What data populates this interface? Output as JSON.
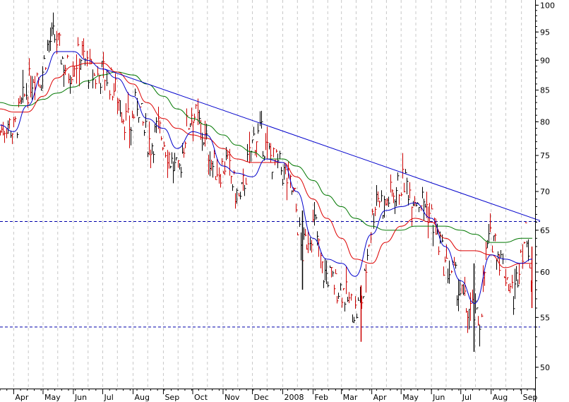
{
  "chart_data": {
    "type": "line",
    "subtype": "stock-ohlc-with-moving-averages",
    "title": "",
    "xlabel": "",
    "ylabel": "",
    "ylim": [
      48,
      101
    ],
    "y_scale": "log",
    "y_ticks": [
      "100",
      "95",
      "90",
      "85",
      "80",
      "75",
      "70",
      "65",
      "60",
      "55",
      "50"
    ],
    "x_ticks": [
      "Apr",
      "May",
      "Jun",
      "Jul",
      "Aug",
      "Sep",
      "Oct",
      "Nov",
      "Dec",
      "2008",
      "Feb",
      "Mar",
      "Apr",
      "May",
      "Jun",
      "Jul",
      "Aug",
      "Sep"
    ],
    "grid": "vertical dotted",
    "colors": {
      "price": "#cc0000",
      "ma_short": "#0000cc",
      "ma_mid": "#dd0000",
      "ma_long": "#007700",
      "trendline": "#0000cc",
      "support": "#0000aa",
      "grid": "#c8c8c8"
    },
    "horizontal_lines": [
      {
        "y": 66.1,
        "style": "dashed"
      },
      {
        "y": 54.0,
        "style": "dashed"
      }
    ],
    "trendline": {
      "x": [
        "2007-07-03",
        "2008-09-20"
      ],
      "y": [
        88.5,
        66.2
      ]
    },
    "ma_short": {
      "x": [
        "2007-03-18",
        "2007-04-01",
        "2007-04-15",
        "2007-05-01",
        "2007-05-15",
        "2007-06-01",
        "2007-06-15",
        "2007-07-01",
        "2007-07-15",
        "2007-08-01",
        "2007-08-15",
        "2007-09-01",
        "2007-09-15",
        "2007-10-01",
        "2007-10-15",
        "2007-11-01",
        "2007-11-15",
        "2007-12-01",
        "2007-12-15",
        "2008-01-01",
        "2008-01-15",
        "2008-02-01",
        "2008-02-15",
        "2008-03-01",
        "2008-03-15",
        "2008-04-01",
        "2008-04-15",
        "2008-05-01",
        "2008-05-15",
        "2008-06-01",
        "2008-06-15",
        "2008-07-01",
        "2008-07-15",
        "2008-08-01",
        "2008-08-15",
        "2008-09-01",
        "2008-09-12"
      ],
      "y": [
        79.5,
        78.5,
        82.5,
        87.5,
        91.5,
        91.5,
        90.0,
        88.5,
        87.0,
        84.0,
        80.5,
        79.0,
        76.0,
        78.5,
        78.0,
        73.5,
        72.5,
        72.0,
        74.5,
        74.0,
        70.0,
        64.0,
        61.5,
        61.0,
        59.5,
        64.5,
        67.5,
        68.0,
        68.5,
        66.5,
        63.0,
        59.0,
        56.5,
        62.0,
        61.5,
        61.0,
        61.5
      ]
    },
    "ma_mid": {
      "x": [
        "2007-03-18",
        "2007-04-01",
        "2007-04-15",
        "2007-05-01",
        "2007-05-15",
        "2007-06-01",
        "2007-06-15",
        "2007-07-01",
        "2007-07-15",
        "2007-08-01",
        "2007-08-15",
        "2007-09-01",
        "2007-09-15",
        "2007-10-01",
        "2007-10-15",
        "2007-11-01",
        "2007-11-15",
        "2007-12-01",
        "2007-12-15",
        "2008-01-01",
        "2008-01-15",
        "2008-02-01",
        "2008-02-15",
        "2008-03-01",
        "2008-03-15",
        "2008-04-01",
        "2008-04-15",
        "2008-05-01",
        "2008-05-15",
        "2008-06-01",
        "2008-06-15",
        "2008-07-01",
        "2008-07-15",
        "2008-08-01",
        "2008-08-15",
        "2008-09-01",
        "2008-09-12"
      ],
      "y": [
        82.0,
        81.5,
        81.5,
        84.0,
        87.0,
        89.0,
        89.5,
        89.5,
        88.0,
        86.0,
        83.0,
        80.5,
        79.0,
        78.0,
        77.5,
        76.0,
        74.5,
        74.0,
        74.0,
        74.0,
        72.0,
        69.0,
        66.5,
        64.0,
        61.5,
        61.0,
        63.5,
        65.5,
        66.5,
        66.0,
        64.0,
        62.5,
        62.5,
        62.0,
        60.5,
        61.0,
        61.0
      ]
    },
    "ma_long": {
      "x": [
        "2007-03-18",
        "2007-04-01",
        "2007-04-15",
        "2007-05-01",
        "2007-05-15",
        "2007-06-01",
        "2007-06-15",
        "2007-07-01",
        "2007-07-15",
        "2007-08-01",
        "2007-08-15",
        "2007-09-01",
        "2007-09-15",
        "2007-10-01",
        "2007-10-15",
        "2007-11-01",
        "2007-11-15",
        "2007-12-01",
        "2007-12-15",
        "2008-01-01",
        "2008-01-15",
        "2008-02-01",
        "2008-02-15",
        "2008-03-01",
        "2008-03-15",
        "2008-04-01",
        "2008-04-15",
        "2008-05-01",
        "2008-05-15",
        "2008-06-01",
        "2008-06-15",
        "2008-07-01",
        "2008-07-15",
        "2008-08-01",
        "2008-08-15",
        "2008-09-01",
        "2008-09-12"
      ],
      "y": [
        83.0,
        82.5,
        82.5,
        83.5,
        84.5,
        85.5,
        86.5,
        87.5,
        88.0,
        87.5,
        86.0,
        84.0,
        82.0,
        80.5,
        79.5,
        78.0,
        76.5,
        75.5,
        74.5,
        74.5,
        73.5,
        71.5,
        69.5,
        68.0,
        66.5,
        65.5,
        65.0,
        65.0,
        65.5,
        65.5,
        65.5,
        65.0,
        64.5,
        63.5,
        63.5,
        64.0,
        64.0
      ]
    },
    "price_waypoints": {
      "x": [
        "2007-03-18",
        "2007-03-25",
        "2007-04-01",
        "2007-04-08",
        "2007-04-15",
        "2007-04-22",
        "2007-04-29",
        "2007-05-06",
        "2007-05-13",
        "2007-05-20",
        "2007-05-27",
        "2007-06-03",
        "2007-06-10",
        "2007-06-17",
        "2007-06-24",
        "2007-07-01",
        "2007-07-08",
        "2007-07-15",
        "2007-07-22",
        "2007-07-29",
        "2007-08-05",
        "2007-08-12",
        "2007-08-19",
        "2007-08-26",
        "2007-09-02",
        "2007-09-09",
        "2007-09-16",
        "2007-09-23",
        "2007-09-30",
        "2007-10-07",
        "2007-10-14",
        "2007-10-21",
        "2007-10-28",
        "2007-11-04",
        "2007-11-11",
        "2007-11-18",
        "2007-11-25",
        "2007-12-02",
        "2007-12-09",
        "2007-12-16",
        "2007-12-23",
        "2007-12-30",
        "2008-01-06",
        "2008-01-13",
        "2008-01-20",
        "2008-01-27",
        "2008-02-03",
        "2008-02-10",
        "2008-02-17",
        "2008-02-24",
        "2008-03-02",
        "2008-03-09",
        "2008-03-16",
        "2008-03-23",
        "2008-03-30",
        "2008-04-06",
        "2008-04-13",
        "2008-04-20",
        "2008-04-27",
        "2008-05-04",
        "2008-05-11",
        "2008-05-18",
        "2008-05-25",
        "2008-06-01",
        "2008-06-08",
        "2008-06-15",
        "2008-06-22",
        "2008-06-29",
        "2008-07-06",
        "2008-07-13",
        "2008-07-20",
        "2008-07-27",
        "2008-08-03",
        "2008-08-10",
        "2008-08-17",
        "2008-08-24",
        "2008-08-31",
        "2008-09-07",
        "2008-09-12"
      ],
      "y": [
        78.5,
        80.0,
        78.5,
        82.0,
        85.5,
        88.0,
        87.0,
        93.0,
        94.0,
        90.5,
        88.0,
        90.0,
        91.0,
        88.0,
        87.0,
        88.0,
        86.5,
        84.5,
        81.0,
        79.0,
        83.5,
        78.5,
        76.5,
        79.0,
        77.0,
        74.0,
        72.0,
        78.0,
        82.0,
        79.5,
        77.0,
        73.5,
        73.0,
        74.0,
        71.0,
        68.5,
        73.0,
        77.5,
        78.0,
        75.5,
        74.0,
        73.0,
        71.5,
        69.0,
        62.0,
        64.5,
        66.0,
        60.0,
        59.5,
        58.5,
        58.0,
        56.5,
        55.5,
        57.5,
        65.0,
        70.0,
        68.0,
        69.5,
        70.5,
        71.5,
        70.0,
        69.0,
        68.5,
        66.5,
        63.5,
        60.5,
        60.0,
        58.0,
        56.0,
        55.5,
        54.5,
        62.5,
        64.5,
        61.5,
        59.5,
        57.0,
        62.5,
        65.0,
        57.0
      ]
    }
  }
}
